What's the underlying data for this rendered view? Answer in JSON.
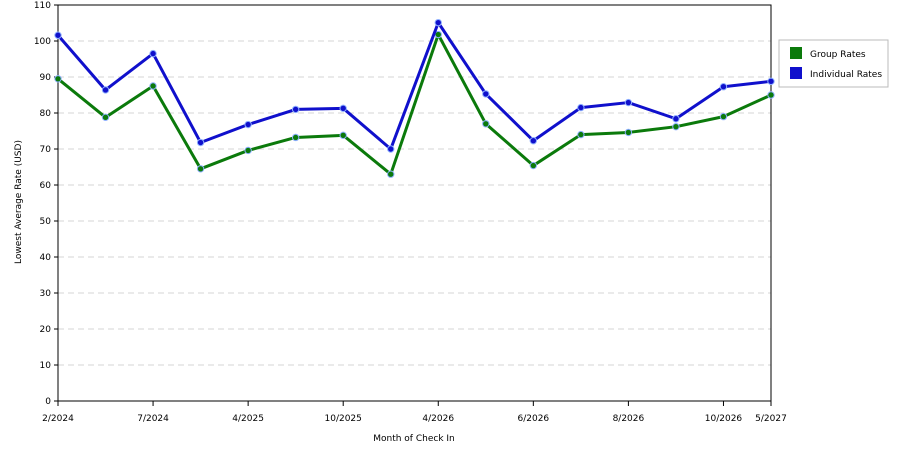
{
  "chart_data": {
    "type": "line",
    "xlabel": "Month of Check In",
    "ylabel": "Lowest Average Rate (USD)",
    "ylim": [
      0,
      110
    ],
    "y_ticks": [
      0,
      10,
      20,
      30,
      40,
      50,
      60,
      70,
      80,
      90,
      100,
      110
    ],
    "x_tick_labels": [
      {
        "index": 0,
        "label": "2/2024"
      },
      {
        "index": 2,
        "label": "7/2024"
      },
      {
        "index": 4,
        "label": "4/2025"
      },
      {
        "index": 6,
        "label": "10/2025"
      },
      {
        "index": 8,
        "label": "4/2026"
      },
      {
        "index": 10,
        "label": "6/2026"
      },
      {
        "index": 12,
        "label": "8/2026"
      },
      {
        "index": 14,
        "label": "10/2026"
      },
      {
        "index": 15,
        "label": "5/2027"
      }
    ],
    "point_count": 16,
    "grid": "horizontal dashed",
    "legend_position": "right",
    "series": [
      {
        "name": "Group Rates",
        "color": "#0b7a0b",
        "values": [
          89.5,
          78.8,
          87.5,
          64.5,
          69.6,
          73.2,
          73.8,
          63.0,
          101.8,
          77.0,
          65.4,
          74.0,
          74.6,
          76.2,
          79.0,
          85.0
        ]
      },
      {
        "name": "Individual Rates",
        "color": "#1010cc",
        "values": [
          101.6,
          86.4,
          96.5,
          71.8,
          76.8,
          81.0,
          81.3,
          70.0,
          105.1,
          85.3,
          72.3,
          81.5,
          82.9,
          78.4,
          87.3,
          88.8
        ]
      }
    ]
  }
}
